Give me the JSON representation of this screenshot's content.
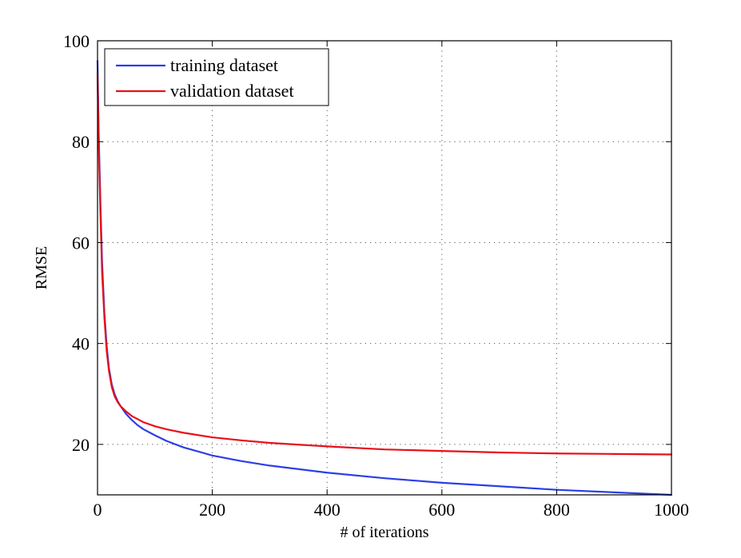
{
  "chart_data": {
    "type": "line",
    "title": "",
    "xlabel": "# of iterations",
    "ylabel": "RMSE",
    "xlim": [
      0,
      1000
    ],
    "ylim": [
      10,
      100
    ],
    "xticks": [
      0,
      200,
      400,
      600,
      800,
      1000
    ],
    "yticks": [
      20,
      40,
      60,
      80,
      100
    ],
    "xtick_labels": [
      "0",
      "200",
      "400",
      "600",
      "800",
      "1000"
    ],
    "ytick_labels": [
      "20",
      "40",
      "60",
      "80",
      "100"
    ],
    "grid": true,
    "legend_position": "top-left",
    "series": [
      {
        "name": "training dataset",
        "color": "#2b3fe6",
        "x": [
          0,
          2,
          5,
          8,
          12,
          16,
          20,
          25,
          30,
          35,
          40,
          50,
          60,
          70,
          80,
          100,
          120,
          150,
          200,
          250,
          300,
          400,
          500,
          600,
          700,
          800,
          900,
          1000
        ],
        "y": [
          96,
          82,
          68,
          56,
          46,
          39.5,
          35,
          31.8,
          29.9,
          28.6,
          27.6,
          26,
          24.8,
          23.8,
          23,
          21.8,
          20.7,
          19.4,
          17.8,
          16.7,
          15.8,
          14.4,
          13.3,
          12.4,
          11.7,
          11,
          10.5,
          10
        ]
      },
      {
        "name": "validation dataset",
        "color": "#e8101a",
        "x": [
          0,
          2,
          5,
          8,
          12,
          16,
          20,
          25,
          30,
          35,
          40,
          50,
          60,
          70,
          80,
          100,
          120,
          150,
          200,
          250,
          300,
          400,
          500,
          600,
          700,
          800,
          900,
          1000
        ],
        "y": [
          93.5,
          80,
          66,
          54,
          45,
          38.5,
          34.5,
          31.3,
          29.5,
          28.4,
          27.6,
          26.5,
          25.6,
          25,
          24.4,
          23.6,
          23,
          22.3,
          21.4,
          20.8,
          20.3,
          19.6,
          19,
          18.7,
          18.4,
          18.2,
          18.1,
          18
        ]
      }
    ]
  }
}
